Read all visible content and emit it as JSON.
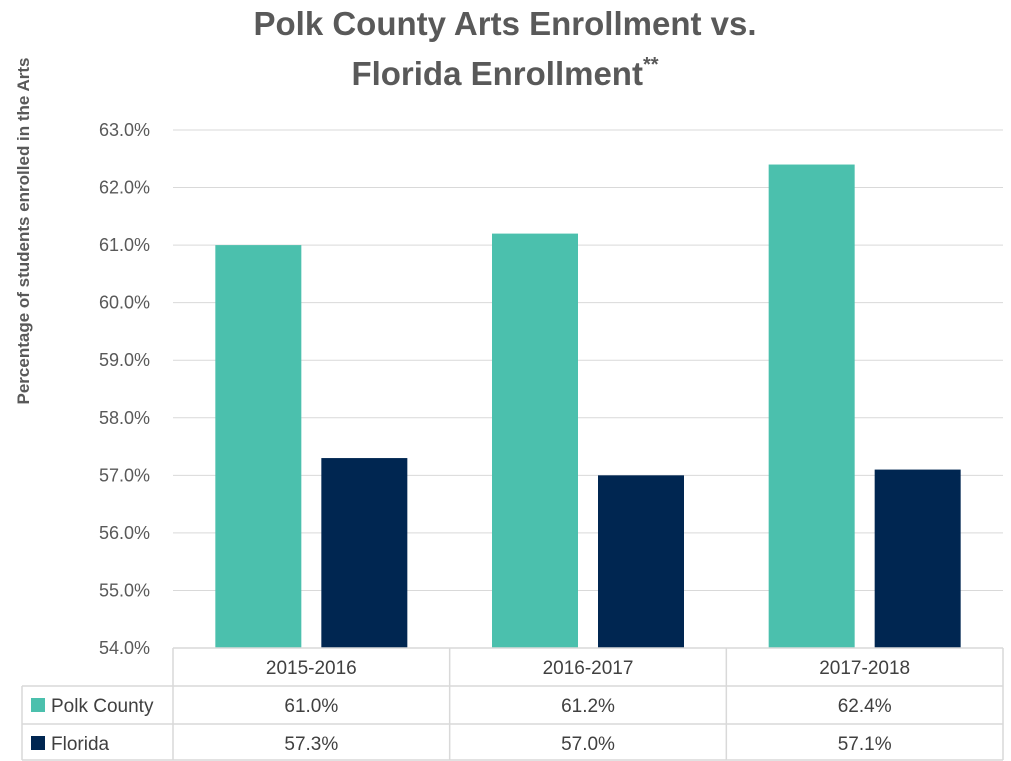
{
  "chart_data": {
    "type": "bar",
    "title_line1": "Polk County Arts Enrollment vs.",
    "title_line2": "Florida Enrollment",
    "title_superscript": "**",
    "ylabel": "Percentage of students enrolled in the Arts",
    "xlabel": "",
    "categories": [
      "2015-2016",
      "2016-2017",
      "2017-2018"
    ],
    "ylim": [
      54,
      63
    ],
    "ytick_step": 1,
    "y_ticks": [
      "63.0%",
      "62.0%",
      "61.0%",
      "60.0%",
      "59.0%",
      "58.0%",
      "57.0%",
      "56.0%",
      "55.0%",
      "54.0%"
    ],
    "series": [
      {
        "name": "Polk County",
        "color": "#4BC0AD",
        "values": [
          61.0,
          61.2,
          62.4
        ],
        "labels": [
          "61.0%",
          "61.2%",
          "62.4%"
        ]
      },
      {
        "name": "Florida",
        "color": "#002651",
        "values": [
          57.3,
          57.0,
          57.1
        ],
        "labels": [
          "57.3%",
          "57.0%",
          "57.1%"
        ]
      }
    ],
    "grid": true,
    "legend": "data-table"
  }
}
